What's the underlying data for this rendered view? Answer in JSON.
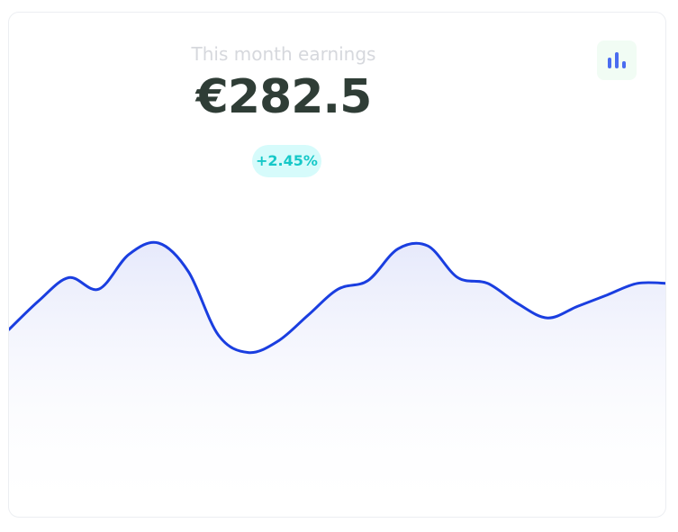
{
  "card": {
    "subtitle": "This month earnings",
    "amount": "€282.5",
    "change": "+2.45%",
    "button_icon": "bar-chart-icon"
  },
  "colors": {
    "line": "#1a3ee0",
    "area_top": "#e6e9fb",
    "amount": "#2f3d36",
    "badge_bg": "#d6fbfb",
    "badge_text": "#16c8c8",
    "icon": "#4a6cf0"
  },
  "chart_data": {
    "type": "area",
    "values": [
      30,
      40,
      48,
      44,
      56,
      60,
      50,
      28,
      22,
      26,
      35,
      44,
      47,
      58,
      59,
      48,
      46,
      39,
      34,
      38,
      42,
      46,
      46
    ],
    "ylim": [
      0,
      100
    ],
    "grid": false
  }
}
